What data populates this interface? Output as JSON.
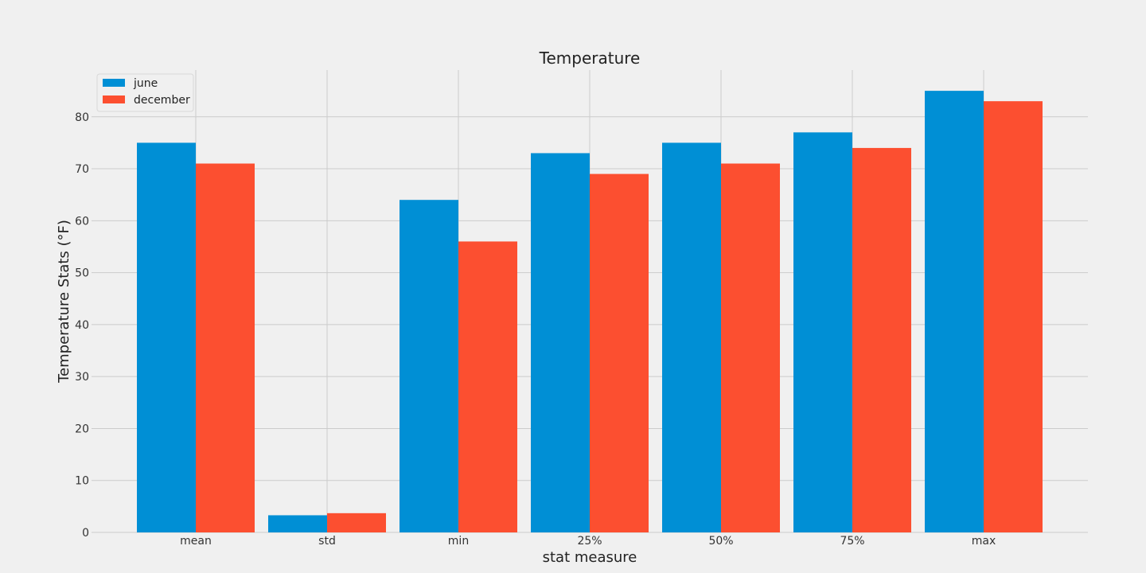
{
  "chart_data": {
    "type": "bar",
    "title": "Temperature",
    "xlabel": "stat measure",
    "ylabel": "Temperature Stats (°F)",
    "categories": [
      "mean",
      "std",
      "min",
      "25%",
      "50%",
      "75%",
      "max"
    ],
    "series": [
      {
        "name": "june",
        "color": "#008fd5",
        "values": [
          75.0,
          3.3,
          64.0,
          73.0,
          75.0,
          77.0,
          85.0
        ]
      },
      {
        "name": "december",
        "color": "#fc4f30",
        "values": [
          71.0,
          3.7,
          56.0,
          69.0,
          71.0,
          74.0,
          83.0
        ]
      }
    ],
    "ylim": [
      0,
      89
    ],
    "yticks": [
      0,
      10,
      20,
      30,
      40,
      50,
      60,
      70,
      80
    ],
    "grid": true,
    "legend_position": "top-left"
  }
}
